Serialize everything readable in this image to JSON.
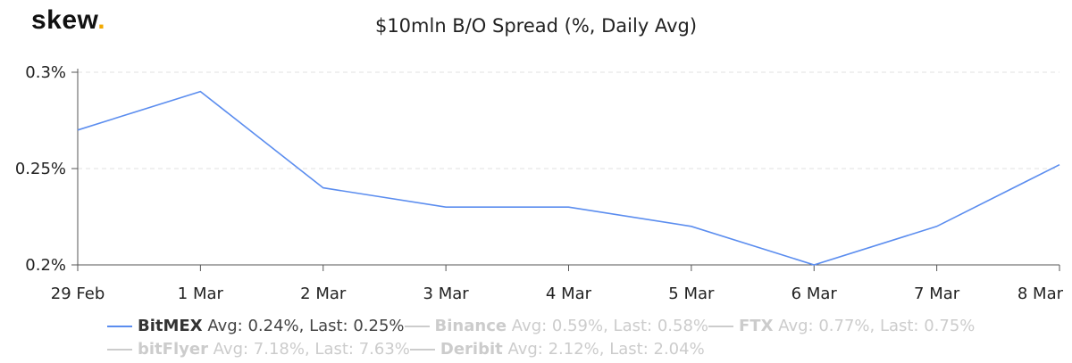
{
  "logo": {
    "text": "skew",
    "dot": "."
  },
  "chart_data": {
    "type": "line",
    "title": "$10mln B/O Spread (%, Daily Avg)",
    "categories": [
      "29 Feb",
      "1 Mar",
      "2 Mar",
      "3 Mar",
      "4 Mar",
      "5 Mar",
      "6 Mar",
      "7 Mar",
      "8 Mar"
    ],
    "yticks": [
      "0.2%",
      "0.25%",
      "0.3%"
    ],
    "ylim": [
      0.2,
      0.3
    ],
    "grid": true,
    "legend_position": "bottom",
    "series": [
      {
        "name": "BitMEX",
        "values": [
          0.27,
          0.29,
          0.24,
          0.23,
          0.23,
          0.22,
          0.2,
          0.22,
          0.252
        ],
        "color": "#5b8def",
        "visible": true
      }
    ]
  },
  "legend": {
    "rows": [
      [
        {
          "name": "BitMEX",
          "stats": "Avg: 0.24%, Last: 0.25%",
          "active": true
        },
        {
          "name": "Binance",
          "stats": "Avg: 0.59%, Last: 0.58%",
          "active": false
        },
        {
          "name": "FTX",
          "stats": "Avg: 0.77%, Last: 0.75%",
          "active": false
        }
      ],
      [
        {
          "name": "bitFlyer",
          "stats": "Avg: 7.18%, Last: 7.63%",
          "active": false
        },
        {
          "name": "Deribit",
          "stats": "Avg: 2.12%, Last: 2.04%",
          "active": false
        }
      ]
    ]
  }
}
